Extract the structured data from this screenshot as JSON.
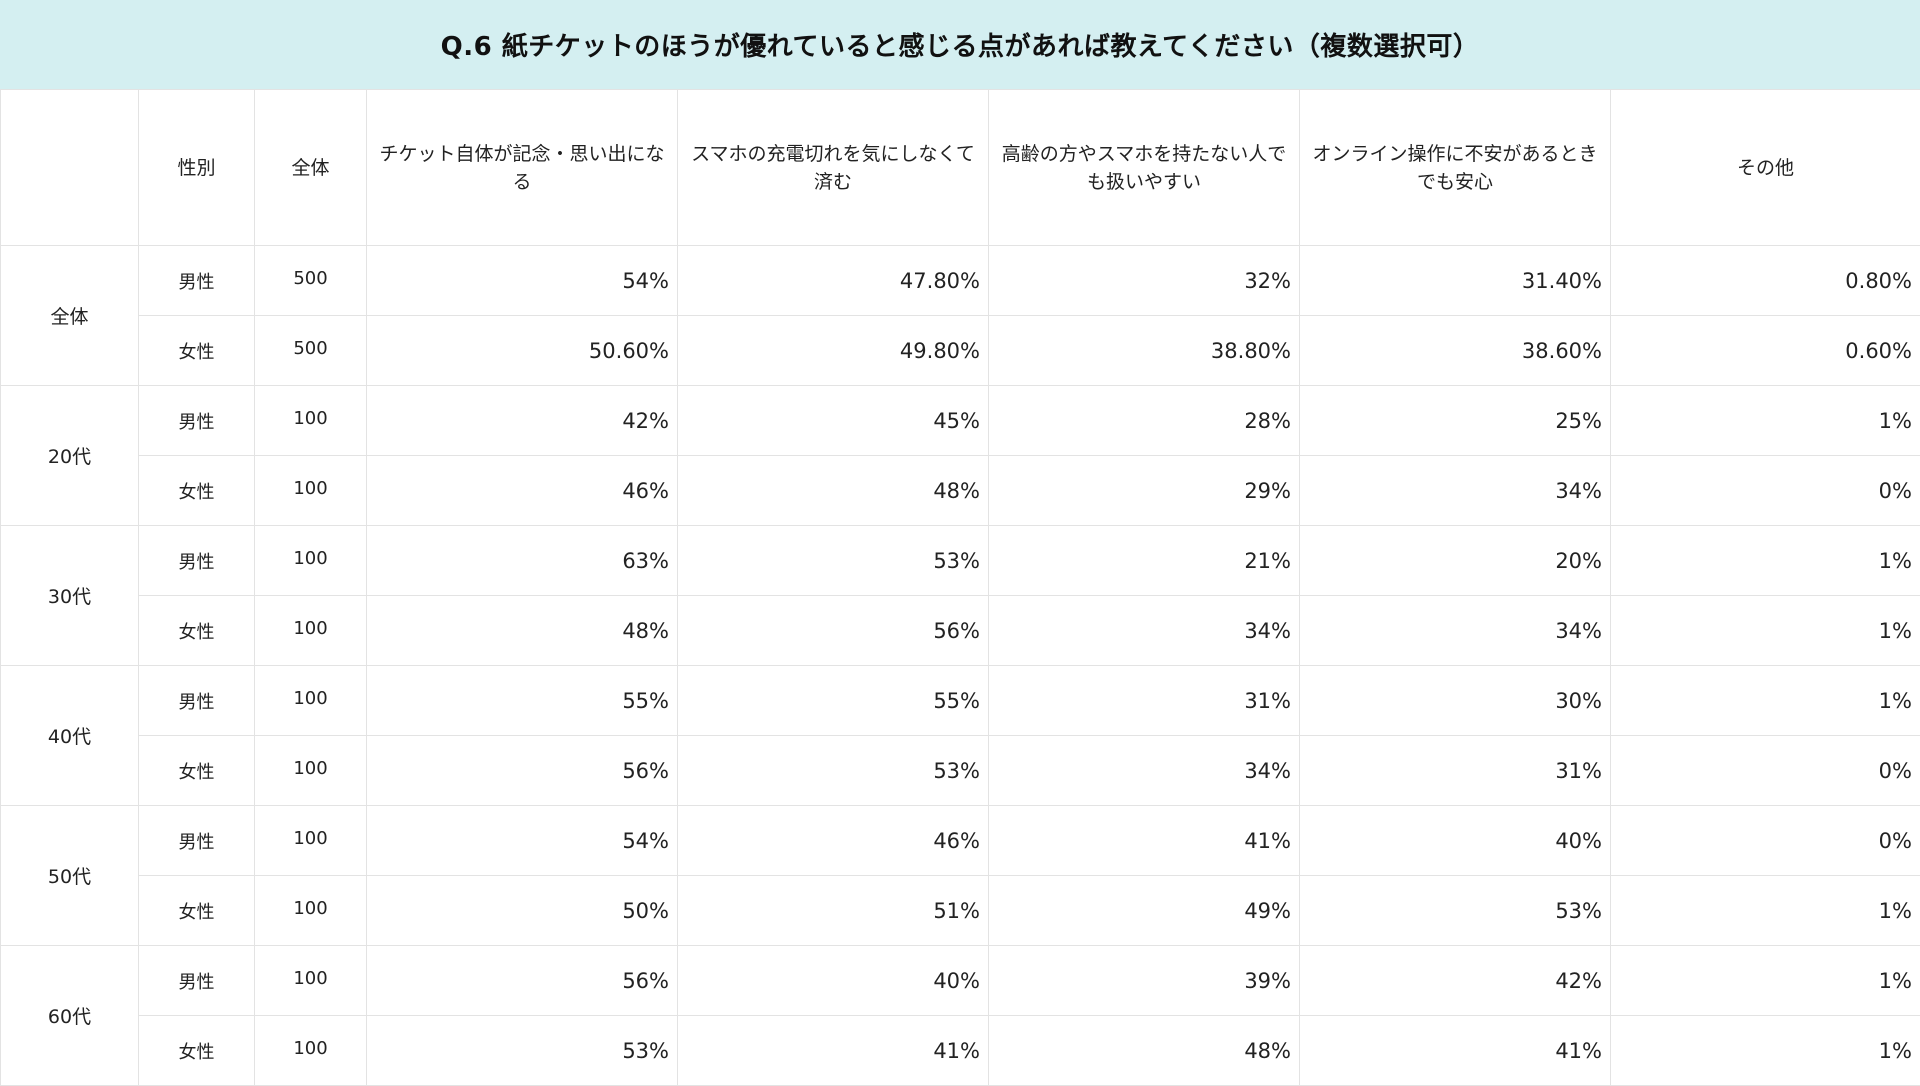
{
  "title": "Q.6 紙チケットのほうが優れていると感じる点があれば教えてください（複数選択可）",
  "headers": {
    "group": "",
    "sex": "性別",
    "total": "全体",
    "answers": [
      "チケット自体が記念・思い出になる",
      "スマホの充電切れを気にしなくて済む",
      "高齢の方やスマホを持たない人でも扱いやすい",
      "オンライン操作に不安があるときでも安心",
      "その他"
    ]
  },
  "groups": [
    {
      "label": "全体",
      "rows": [
        {
          "sex": "男性",
          "n": "500",
          "values": [
            "54%",
            "47.80%",
            "32%",
            "31.40%",
            "0.80%"
          ]
        },
        {
          "sex": "女性",
          "n": "500",
          "values": [
            "50.60%",
            "49.80%",
            "38.80%",
            "38.60%",
            "0.60%"
          ]
        }
      ]
    },
    {
      "label": "20代",
      "rows": [
        {
          "sex": "男性",
          "n": "100",
          "values": [
            "42%",
            "45%",
            "28%",
            "25%",
            "1%"
          ]
        },
        {
          "sex": "女性",
          "n": "100",
          "values": [
            "46%",
            "48%",
            "29%",
            "34%",
            "0%"
          ]
        }
      ]
    },
    {
      "label": "30代",
      "rows": [
        {
          "sex": "男性",
          "n": "100",
          "values": [
            "63%",
            "53%",
            "21%",
            "20%",
            "1%"
          ]
        },
        {
          "sex": "女性",
          "n": "100",
          "values": [
            "48%",
            "56%",
            "34%",
            "34%",
            "1%"
          ]
        }
      ]
    },
    {
      "label": "40代",
      "rows": [
        {
          "sex": "男性",
          "n": "100",
          "values": [
            "55%",
            "55%",
            "31%",
            "30%",
            "1%"
          ]
        },
        {
          "sex": "女性",
          "n": "100",
          "values": [
            "56%",
            "53%",
            "34%",
            "31%",
            "0%"
          ]
        }
      ]
    },
    {
      "label": "50代",
      "rows": [
        {
          "sex": "男性",
          "n": "100",
          "values": [
            "54%",
            "46%",
            "41%",
            "40%",
            "0%"
          ]
        },
        {
          "sex": "女性",
          "n": "100",
          "values": [
            "50%",
            "51%",
            "49%",
            "53%",
            "1%"
          ]
        }
      ]
    },
    {
      "label": "60代",
      "rows": [
        {
          "sex": "男性",
          "n": "100",
          "values": [
            "56%",
            "40%",
            "39%",
            "42%",
            "1%"
          ]
        },
        {
          "sex": "女性",
          "n": "100",
          "values": [
            "53%",
            "41%",
            "48%",
            "41%",
            "1%"
          ]
        }
      ]
    }
  ]
}
